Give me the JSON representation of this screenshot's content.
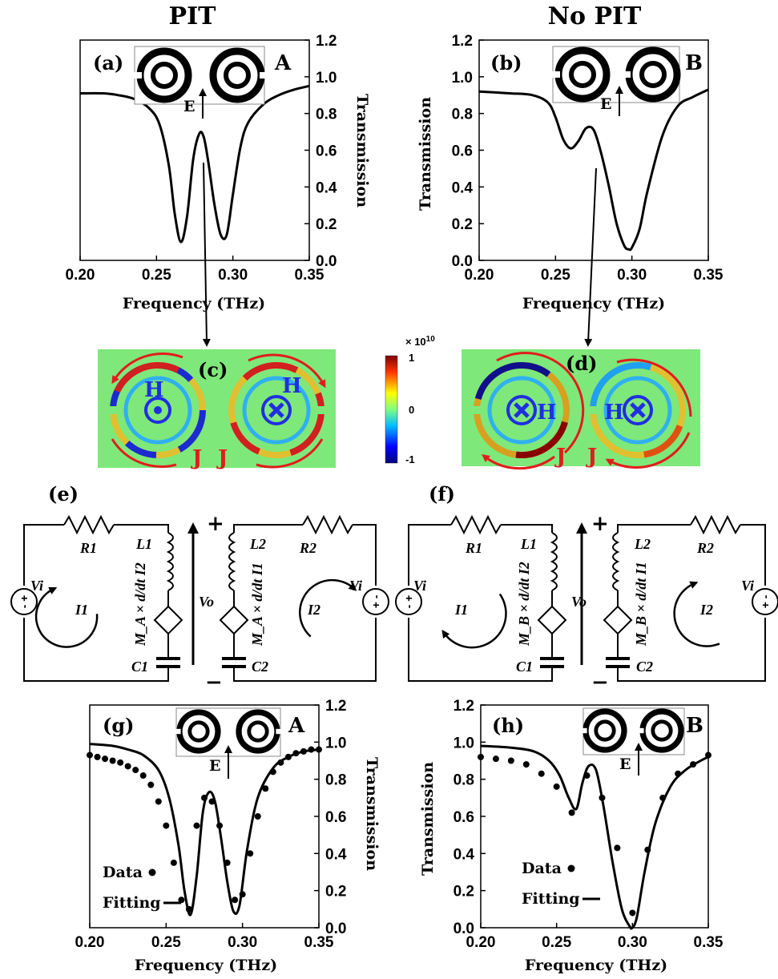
{
  "titles": {
    "left": "PIT",
    "right": "No PIT"
  },
  "panel_labels": {
    "a": "(a)",
    "b": "(b)",
    "c": "(c)",
    "d": "(d)",
    "e": "(e)",
    "f": "(f)",
    "g": "(g)",
    "h": "(h)"
  },
  "structure_labels": {
    "a": "A",
    "b": "B",
    "g": "A",
    "h": "B",
    "e_field": "E"
  },
  "field_labels": {
    "H": "H",
    "J": "J"
  },
  "colorbar": {
    "exponent": "× 10",
    "exponent_power": "10",
    "ticks": [
      "1",
      "0",
      "-1"
    ]
  },
  "axes": {
    "xlabel": "Frequency (THz)",
    "ylabel": "Transmission"
  },
  "circuit_labels": {
    "R1": "R1",
    "R2": "R2",
    "L1": "L1",
    "L2": "L2",
    "C1": "C1",
    "C2": "C2",
    "Vi": "Vi",
    "Vo": "Vo",
    "I1": "I1",
    "I2": "I2",
    "plus": "+",
    "minus": "−",
    "e_left_expr": "M_A × d/dt I2",
    "e_right_expr": "M_A × d/dt I1",
    "f_left_expr": "M_B × d/dt I2",
    "f_right_expr": "M_B × d/dt I1"
  },
  "legend": {
    "data": "Data",
    "fitting": "Fitting"
  },
  "colors": {
    "curve": "#000000",
    "field_bg": "#7ee87a",
    "current_arrow": "#e21c1c",
    "field_symbol": "#1f2fe0"
  },
  "chart_data": [
    {
      "id": "a",
      "type": "line",
      "xlabel": "Frequency (THz)",
      "ylabel": "Transmission",
      "xlim": [
        0.2,
        0.35
      ],
      "ylim": [
        0.0,
        1.2
      ],
      "y_axis_side": "right",
      "xticks": [
        "0.20",
        "0.25",
        "0.30",
        "0.35"
      ],
      "yticks": [
        "0.0",
        "0.2",
        "0.4",
        "0.6",
        "0.8",
        "1.0",
        "1.2"
      ],
      "series": [
        {
          "x": [
            0.2,
            0.215,
            0.225,
            0.235,
            0.245,
            0.252,
            0.258,
            0.262,
            0.266,
            0.27,
            0.274,
            0.278,
            0.281,
            0.284,
            0.288,
            0.292,
            0.296,
            0.3,
            0.305,
            0.31,
            0.32,
            0.33,
            0.34,
            0.35
          ],
          "y": [
            0.91,
            0.91,
            0.9,
            0.88,
            0.83,
            0.74,
            0.52,
            0.25,
            0.1,
            0.24,
            0.55,
            0.69,
            0.67,
            0.53,
            0.3,
            0.14,
            0.14,
            0.36,
            0.62,
            0.75,
            0.85,
            0.9,
            0.93,
            0.95
          ]
        }
      ]
    },
    {
      "id": "b",
      "type": "line",
      "xlabel": "Frequency (THz)",
      "ylabel": "Transmission",
      "xlim": [
        0.2,
        0.35
      ],
      "ylim": [
        0.0,
        1.2
      ],
      "y_axis_side": "left",
      "xticks": [
        "0.20",
        "0.25",
        "0.30",
        "0.35"
      ],
      "yticks": [
        "0.0",
        "0.2",
        "0.4",
        "0.6",
        "0.8",
        "1.0",
        "1.2"
      ],
      "series": [
        {
          "x": [
            0.2,
            0.22,
            0.235,
            0.245,
            0.25,
            0.255,
            0.26,
            0.265,
            0.27,
            0.275,
            0.28,
            0.285,
            0.29,
            0.295,
            0.298,
            0.3,
            0.305,
            0.31,
            0.32,
            0.33,
            0.34,
            0.35
          ],
          "y": [
            0.92,
            0.91,
            0.9,
            0.86,
            0.78,
            0.66,
            0.61,
            0.65,
            0.72,
            0.71,
            0.58,
            0.4,
            0.2,
            0.08,
            0.06,
            0.07,
            0.17,
            0.37,
            0.68,
            0.84,
            0.89,
            0.93
          ]
        }
      ]
    },
    {
      "id": "g",
      "type": "line",
      "xlabel": "Frequency (THz)",
      "ylabel": "Transmission",
      "xlim": [
        0.2,
        0.35
      ],
      "ylim": [
        0.0,
        1.2
      ],
      "y_axis_side": "right",
      "xticks": [
        "0.20",
        "0.25",
        "0.30",
        "0.35"
      ],
      "yticks": [
        "0.0",
        "0.2",
        "0.4",
        "0.6",
        "0.8",
        "1.0",
        "1.2"
      ],
      "series": [
        {
          "name": "Fitting",
          "x": [
            0.2,
            0.215,
            0.225,
            0.235,
            0.245,
            0.252,
            0.258,
            0.262,
            0.266,
            0.27,
            0.274,
            0.278,
            0.282,
            0.286,
            0.29,
            0.294,
            0.298,
            0.303,
            0.31,
            0.32,
            0.33,
            0.34,
            0.35
          ],
          "y": [
            0.99,
            0.98,
            0.96,
            0.93,
            0.85,
            0.7,
            0.45,
            0.2,
            0.07,
            0.28,
            0.62,
            0.73,
            0.68,
            0.48,
            0.25,
            0.09,
            0.12,
            0.42,
            0.7,
            0.86,
            0.92,
            0.95,
            0.96
          ]
        },
        {
          "name": "Data",
          "x": [
            0.2,
            0.205,
            0.21,
            0.215,
            0.22,
            0.225,
            0.23,
            0.235,
            0.24,
            0.245,
            0.25,
            0.255,
            0.26,
            0.265,
            0.27,
            0.275,
            0.28,
            0.285,
            0.29,
            0.295,
            0.3,
            0.305,
            0.31,
            0.315,
            0.32,
            0.325,
            0.33,
            0.335,
            0.34,
            0.345,
            0.35
          ],
          "y": [
            0.93,
            0.92,
            0.91,
            0.9,
            0.89,
            0.87,
            0.85,
            0.82,
            0.77,
            0.68,
            0.55,
            0.35,
            0.15,
            0.1,
            0.55,
            0.7,
            0.68,
            0.55,
            0.35,
            0.15,
            0.18,
            0.4,
            0.6,
            0.75,
            0.84,
            0.89,
            0.92,
            0.94,
            0.95,
            0.96,
            0.96
          ]
        }
      ]
    },
    {
      "id": "h",
      "type": "line",
      "xlabel": "Frequency (THz)",
      "ylabel": "Transmission",
      "xlim": [
        0.2,
        0.35
      ],
      "ylim": [
        0.0,
        1.2
      ],
      "y_axis_side": "left",
      "xticks": [
        "0.20",
        "0.25",
        "0.30",
        "0.35"
      ],
      "yticks": [
        "0.0",
        "0.2",
        "0.4",
        "0.6",
        "0.8",
        "1.0",
        "1.2"
      ],
      "series": [
        {
          "name": "Fitting",
          "x": [
            0.2,
            0.22,
            0.235,
            0.245,
            0.252,
            0.258,
            0.263,
            0.267,
            0.271,
            0.276,
            0.281,
            0.287,
            0.293,
            0.298,
            0.3,
            0.303,
            0.308,
            0.315,
            0.325,
            0.335,
            0.345,
            0.35
          ],
          "y": [
            0.98,
            0.97,
            0.95,
            0.9,
            0.82,
            0.7,
            0.64,
            0.78,
            0.87,
            0.85,
            0.65,
            0.35,
            0.1,
            0.01,
            0.0,
            0.06,
            0.3,
            0.56,
            0.76,
            0.85,
            0.9,
            0.92
          ]
        },
        {
          "name": "Data",
          "x": [
            0.2,
            0.21,
            0.22,
            0.23,
            0.24,
            0.25,
            0.26,
            0.27,
            0.28,
            0.29,
            0.3,
            0.31,
            0.32,
            0.33,
            0.34,
            0.35
          ],
          "y": [
            0.92,
            0.91,
            0.9,
            0.88,
            0.83,
            0.76,
            0.62,
            0.82,
            0.7,
            0.43,
            0.08,
            0.42,
            0.7,
            0.83,
            0.88,
            0.93
          ]
        }
      ]
    }
  ]
}
